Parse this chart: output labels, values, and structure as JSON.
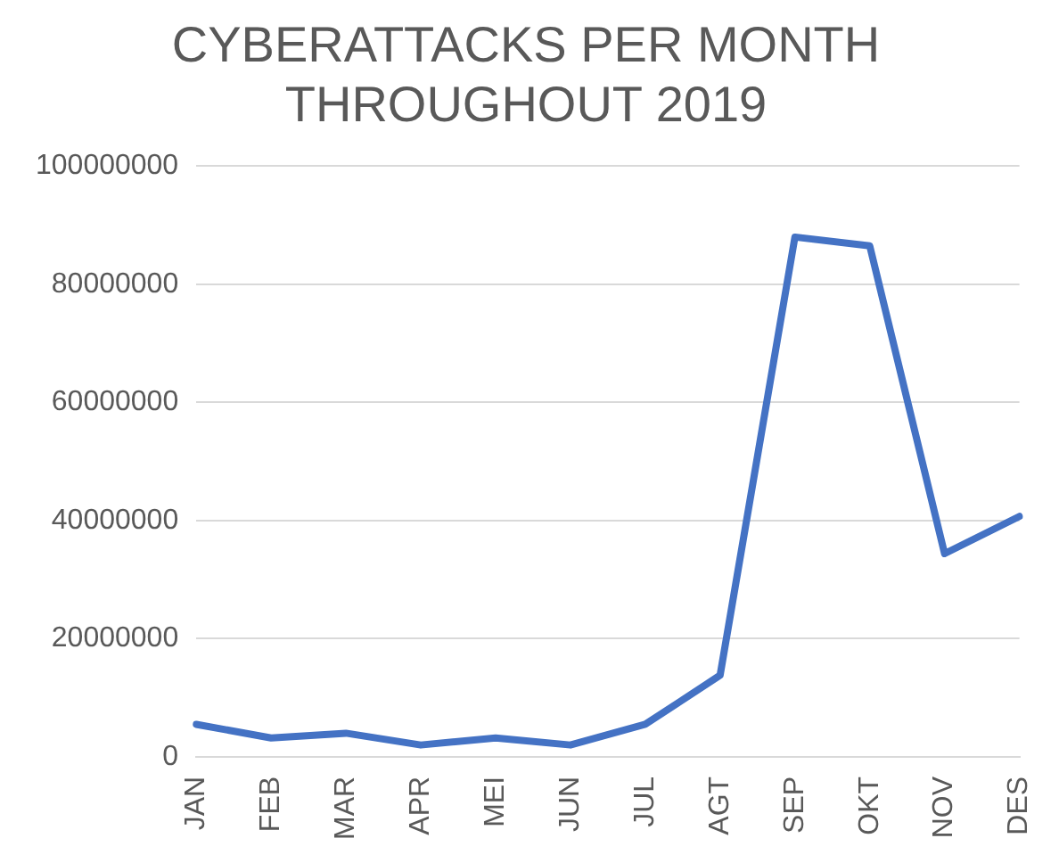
{
  "chart_data": {
    "type": "line",
    "title": [
      "CYBERATTACKS PER MONTH",
      "THROUGHOUT 2019"
    ],
    "categories": [
      "JAN",
      "FEB",
      "MAR",
      "APR",
      "MEI",
      "JUN",
      "JUL",
      "AGT",
      "SEP",
      "OKT",
      "NOV",
      "DES"
    ],
    "series": [
      {
        "color": "#4472c4",
        "values": [
          5500000,
          3200000,
          4000000,
          2000000,
          3200000,
          2000000,
          5500000,
          13800000,
          88000000,
          86500000,
          34400000,
          40700000
        ]
      }
    ],
    "ylim": [
      0,
      100000000
    ],
    "yticks": [
      0,
      20000000,
      40000000,
      60000000,
      80000000,
      100000000
    ],
    "grid": "y",
    "legend": false,
    "marker": "none",
    "line_style": "solid"
  }
}
